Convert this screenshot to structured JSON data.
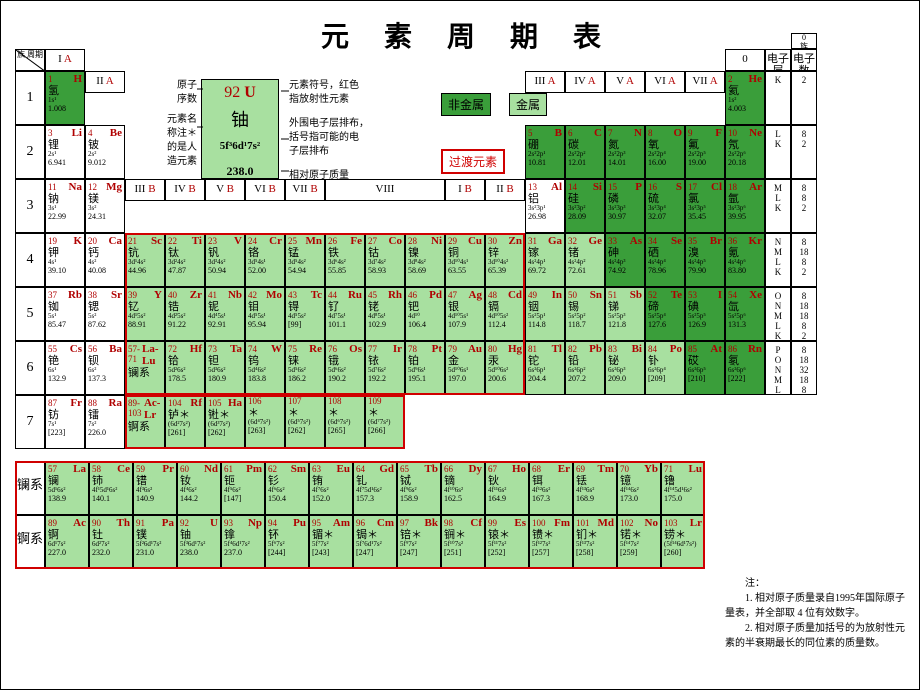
{
  "title": "元 素 周 期 表",
  "legend": {
    "nonmetal": "非金属",
    "metal": "金属",
    "transition": "过渡元素"
  },
  "annotations": {
    "atomic_num": "原子\n序数",
    "symbol_hint": "元素符号，红色\n指放射性元素",
    "name_hint": "元素名\n称注＊\n的是人\n造元素",
    "econf_hint": "外围电子层排布，\n括号指可能的电\n子层排布",
    "mass_hint": "相对原子质量"
  },
  "example": {
    "num": "92",
    "sym": "U",
    "cn": "铀",
    "ec": "5f³6d¹7s²",
    "mass": "238.0"
  },
  "notes_title": "注：",
  "notes": [
    "1. 相对原子质量录自1995年国际原子量表，并全部取 4 位有效数字。",
    "2. 相对原子质量加括号的为放射性元素的半衰期最长的同位素的质量数。"
  ],
  "groups_main": [
    "I A",
    "II A",
    "III A",
    "IV A",
    "V A",
    "VI A",
    "VII A",
    "0"
  ],
  "groups_b": [
    "III B",
    "IV B",
    "V B",
    "VI B",
    "VII B",
    "VIII",
    "I B",
    "II B"
  ],
  "periods": [
    "1",
    "2",
    "3",
    "4",
    "5",
    "6",
    "7"
  ],
  "shell_labels": [
    "电子层",
    "电子数"
  ],
  "shells": [
    [
      "K",
      "2"
    ],
    [
      "L\nK",
      "8\n2"
    ],
    [
      "M\nL\nK",
      "8\n8\n2"
    ],
    [
      "N\nM\nL\nK",
      "8\n18\n8\n2"
    ],
    [
      "O\nN\nM\nL\nK",
      "8\n18\n18\n8\n2"
    ],
    [
      "P\nO\nN\nM\nL\nK",
      "8\n18\n32\n18\n8\n2"
    ]
  ],
  "corner": "族\n周期",
  "series": {
    "lan": "镧系",
    "act": "锕系"
  },
  "colors": {
    "green": "#a8e0a0",
    "dgreen": "#3a9e3a",
    "red": "#b00000",
    "border_red": "#d00000",
    "white": "#ffffff",
    "black": "#000000"
  },
  "elements": [
    {
      "p": 1,
      "g": 1,
      "n": "1",
      "s": "H",
      "cn": "氢",
      "ec": "1s¹",
      "m": "1.008",
      "c": "dgreen"
    },
    {
      "p": 1,
      "g": 18,
      "n": "2",
      "s": "He",
      "cn": "氦",
      "ec": "1s²",
      "m": "4.003",
      "c": "dgreen"
    },
    {
      "p": 2,
      "g": 1,
      "n": "3",
      "s": "Li",
      "cn": "锂",
      "ec": "2s¹",
      "m": "6.941",
      "c": ""
    },
    {
      "p": 2,
      "g": 2,
      "n": "4",
      "s": "Be",
      "cn": "铍",
      "ec": "2s²",
      "m": "9.012",
      "c": ""
    },
    {
      "p": 2,
      "g": 13,
      "n": "5",
      "s": "B",
      "cn": "硼",
      "ec": "2s²2p¹",
      "m": "10.81",
      "c": "dgreen"
    },
    {
      "p": 2,
      "g": 14,
      "n": "6",
      "s": "C",
      "cn": "碳",
      "ec": "2s²2p²",
      "m": "12.01",
      "c": "dgreen"
    },
    {
      "p": 2,
      "g": 15,
      "n": "7",
      "s": "N",
      "cn": "氮",
      "ec": "2s²2p³",
      "m": "14.01",
      "c": "dgreen"
    },
    {
      "p": 2,
      "g": 16,
      "n": "8",
      "s": "O",
      "cn": "氧",
      "ec": "2s²2p⁴",
      "m": "16.00",
      "c": "dgreen"
    },
    {
      "p": 2,
      "g": 17,
      "n": "9",
      "s": "F",
      "cn": "氟",
      "ec": "2s²2p⁵",
      "m": "19.00",
      "c": "dgreen"
    },
    {
      "p": 2,
      "g": 18,
      "n": "10",
      "s": "Ne",
      "cn": "氖",
      "ec": "2s²2p⁶",
      "m": "20.18",
      "c": "dgreen"
    },
    {
      "p": 3,
      "g": 1,
      "n": "11",
      "s": "Na",
      "cn": "钠",
      "ec": "3s¹",
      "m": "22.99",
      "c": ""
    },
    {
      "p": 3,
      "g": 2,
      "n": "12",
      "s": "Mg",
      "cn": "镁",
      "ec": "3s²",
      "m": "24.31",
      "c": ""
    },
    {
      "p": 3,
      "g": 13,
      "n": "13",
      "s": "Al",
      "cn": "铝",
      "ec": "3s²3p¹",
      "m": "26.98",
      "c": ""
    },
    {
      "p": 3,
      "g": 14,
      "n": "14",
      "s": "Si",
      "cn": "硅",
      "ec": "3s²3p²",
      "m": "28.09",
      "c": "dgreen"
    },
    {
      "p": 3,
      "g": 15,
      "n": "15",
      "s": "P",
      "cn": "磷",
      "ec": "3s²3p³",
      "m": "30.97",
      "c": "dgreen"
    },
    {
      "p": 3,
      "g": 16,
      "n": "16",
      "s": "S",
      "cn": "硫",
      "ec": "3s²3p⁴",
      "m": "32.07",
      "c": "dgreen"
    },
    {
      "p": 3,
      "g": 17,
      "n": "17",
      "s": "Cl",
      "cn": "氯",
      "ec": "3s²3p⁵",
      "m": "35.45",
      "c": "dgreen"
    },
    {
      "p": 3,
      "g": 18,
      "n": "18",
      "s": "Ar",
      "cn": "氩",
      "ec": "3s²3p⁶",
      "m": "39.95",
      "c": "dgreen"
    },
    {
      "p": 4,
      "g": 1,
      "n": "19",
      "s": "K",
      "cn": "钾",
      "ec": "4s¹",
      "m": "39.10",
      "c": ""
    },
    {
      "p": 4,
      "g": 2,
      "n": "20",
      "s": "Ca",
      "cn": "钙",
      "ec": "4s²",
      "m": "40.08",
      "c": ""
    },
    {
      "p": 4,
      "g": 3,
      "n": "21",
      "s": "Sc",
      "cn": "钪",
      "ec": "3d¹4s²",
      "m": "44.96",
      "c": "green"
    },
    {
      "p": 4,
      "g": 4,
      "n": "22",
      "s": "Ti",
      "cn": "钛",
      "ec": "3d²4s²",
      "m": "47.87",
      "c": "green"
    },
    {
      "p": 4,
      "g": 5,
      "n": "23",
      "s": "V",
      "cn": "钒",
      "ec": "3d³4s²",
      "m": "50.94",
      "c": "green"
    },
    {
      "p": 4,
      "g": 6,
      "n": "24",
      "s": "Cr",
      "cn": "铬",
      "ec": "3d⁵4s¹",
      "m": "52.00",
      "c": "green"
    },
    {
      "p": 4,
      "g": 7,
      "n": "25",
      "s": "Mn",
      "cn": "锰",
      "ec": "3d⁵4s²",
      "m": "54.94",
      "c": "green"
    },
    {
      "p": 4,
      "g": 8,
      "n": "26",
      "s": "Fe",
      "cn": "铁",
      "ec": "3d⁶4s²",
      "m": "55.85",
      "c": "green"
    },
    {
      "p": 4,
      "g": 9,
      "n": "27",
      "s": "Co",
      "cn": "钴",
      "ec": "3d⁷4s²",
      "m": "58.93",
      "c": "green"
    },
    {
      "p": 4,
      "g": 10,
      "n": "28",
      "s": "Ni",
      "cn": "镍",
      "ec": "3d⁸4s²",
      "m": "58.69",
      "c": "green"
    },
    {
      "p": 4,
      "g": 11,
      "n": "29",
      "s": "Cu",
      "cn": "铜",
      "ec": "3d¹⁰4s¹",
      "m": "63.55",
      "c": "green"
    },
    {
      "p": 4,
      "g": 12,
      "n": "30",
      "s": "Zn",
      "cn": "锌",
      "ec": "3d¹⁰4s²",
      "m": "65.39",
      "c": "green"
    },
    {
      "p": 4,
      "g": 13,
      "n": "31",
      "s": "Ga",
      "cn": "镓",
      "ec": "4s²4p¹",
      "m": "69.72",
      "c": "green"
    },
    {
      "p": 4,
      "g": 14,
      "n": "32",
      "s": "Ge",
      "cn": "锗",
      "ec": "4s²4p²",
      "m": "72.61",
      "c": "green"
    },
    {
      "p": 4,
      "g": 15,
      "n": "33",
      "s": "As",
      "cn": "砷",
      "ec": "4s²4p³",
      "m": "74.92",
      "c": "dgreen"
    },
    {
      "p": 4,
      "g": 16,
      "n": "34",
      "s": "Se",
      "cn": "硒",
      "ec": "4s²4p⁴",
      "m": "78.96",
      "c": "dgreen"
    },
    {
      "p": 4,
      "g": 17,
      "n": "35",
      "s": "Br",
      "cn": "溴",
      "ec": "4s²4p⁵",
      "m": "79.90",
      "c": "dgreen"
    },
    {
      "p": 4,
      "g": 18,
      "n": "36",
      "s": "Kr",
      "cn": "氪",
      "ec": "4s²4p⁶",
      "m": "83.80",
      "c": "dgreen"
    },
    {
      "p": 5,
      "g": 1,
      "n": "37",
      "s": "Rb",
      "cn": "铷",
      "ec": "5s¹",
      "m": "85.47",
      "c": ""
    },
    {
      "p": 5,
      "g": 2,
      "n": "38",
      "s": "Sr",
      "cn": "锶",
      "ec": "5s²",
      "m": "87.62",
      "c": ""
    },
    {
      "p": 5,
      "g": 3,
      "n": "39",
      "s": "Y",
      "cn": "钇",
      "ec": "4d¹5s²",
      "m": "88.91",
      "c": "green"
    },
    {
      "p": 5,
      "g": 4,
      "n": "40",
      "s": "Zr",
      "cn": "锆",
      "ec": "4d²5s²",
      "m": "91.22",
      "c": "green"
    },
    {
      "p": 5,
      "g": 5,
      "n": "41",
      "s": "Nb",
      "cn": "铌",
      "ec": "4d⁴5s¹",
      "m": "92.91",
      "c": "green"
    },
    {
      "p": 5,
      "g": 6,
      "n": "42",
      "s": "Mo",
      "cn": "钼",
      "ec": "4d⁵5s¹",
      "m": "95.94",
      "c": "green"
    },
    {
      "p": 5,
      "g": 7,
      "n": "43",
      "s": "Tc",
      "cn": "锝",
      "ec": "4d⁵5s²",
      "m": "[99]",
      "c": "green"
    },
    {
      "p": 5,
      "g": 8,
      "n": "44",
      "s": "Ru",
      "cn": "钌",
      "ec": "4d⁷5s¹",
      "m": "101.1",
      "c": "green"
    },
    {
      "p": 5,
      "g": 9,
      "n": "45",
      "s": "Rh",
      "cn": "铑",
      "ec": "4d⁸5s¹",
      "m": "102.9",
      "c": "green"
    },
    {
      "p": 5,
      "g": 10,
      "n": "46",
      "s": "Pd",
      "cn": "钯",
      "ec": "4d¹⁰",
      "m": "106.4",
      "c": "green"
    },
    {
      "p": 5,
      "g": 11,
      "n": "47",
      "s": "Ag",
      "cn": "银",
      "ec": "4d¹⁰5s¹",
      "m": "107.9",
      "c": "green"
    },
    {
      "p": 5,
      "g": 12,
      "n": "48",
      "s": "Cd",
      "cn": "镉",
      "ec": "4d¹⁰5s²",
      "m": "112.4",
      "c": "green"
    },
    {
      "p": 5,
      "g": 13,
      "n": "49",
      "s": "In",
      "cn": "铟",
      "ec": "5s²5p¹",
      "m": "114.8",
      "c": "green"
    },
    {
      "p": 5,
      "g": 14,
      "n": "50",
      "s": "Sn",
      "cn": "锡",
      "ec": "5s²5p²",
      "m": "118.7",
      "c": "green"
    },
    {
      "p": 5,
      "g": 15,
      "n": "51",
      "s": "Sb",
      "cn": "锑",
      "ec": "5s²5p³",
      "m": "121.8",
      "c": "green"
    },
    {
      "p": 5,
      "g": 16,
      "n": "52",
      "s": "Te",
      "cn": "碲",
      "ec": "5s²5p⁴",
      "m": "127.6",
      "c": "dgreen"
    },
    {
      "p": 5,
      "g": 17,
      "n": "53",
      "s": "I",
      "cn": "碘",
      "ec": "5s²5p⁵",
      "m": "126.9",
      "c": "dgreen"
    },
    {
      "p": 5,
      "g": 18,
      "n": "54",
      "s": "Xe",
      "cn": "氙",
      "ec": "5s²5p⁶",
      "m": "131.3",
      "c": "dgreen"
    },
    {
      "p": 6,
      "g": 1,
      "n": "55",
      "s": "Cs",
      "cn": "铯",
      "ec": "6s¹",
      "m": "132.9",
      "c": ""
    },
    {
      "p": 6,
      "g": 2,
      "n": "56",
      "s": "Ba",
      "cn": "钡",
      "ec": "6s²",
      "m": "137.3",
      "c": ""
    },
    {
      "p": 6,
      "g": 3,
      "n": "57-71",
      "s": "La-Lu",
      "cn": "镧系",
      "ec": "",
      "m": "",
      "c": "green"
    },
    {
      "p": 6,
      "g": 4,
      "n": "72",
      "s": "Hf",
      "cn": "铪",
      "ec": "5d²6s²",
      "m": "178.5",
      "c": "green"
    },
    {
      "p": 6,
      "g": 5,
      "n": "73",
      "s": "Ta",
      "cn": "钽",
      "ec": "5d³6s²",
      "m": "180.9",
      "c": "green"
    },
    {
      "p": 6,
      "g": 6,
      "n": "74",
      "s": "W",
      "cn": "钨",
      "ec": "5d⁴6s²",
      "m": "183.8",
      "c": "green"
    },
    {
      "p": 6,
      "g": 7,
      "n": "75",
      "s": "Re",
      "cn": "铼",
      "ec": "5d⁵6s²",
      "m": "186.2",
      "c": "green"
    },
    {
      "p": 6,
      "g": 8,
      "n": "76",
      "s": "Os",
      "cn": "锇",
      "ec": "5d⁶6s²",
      "m": "190.2",
      "c": "green"
    },
    {
      "p": 6,
      "g": 9,
      "n": "77",
      "s": "Ir",
      "cn": "铱",
      "ec": "5d⁷6s²",
      "m": "192.2",
      "c": "green"
    },
    {
      "p": 6,
      "g": 10,
      "n": "78",
      "s": "Pt",
      "cn": "铂",
      "ec": "5d⁹6s¹",
      "m": "195.1",
      "c": "green"
    },
    {
      "p": 6,
      "g": 11,
      "n": "79",
      "s": "Au",
      "cn": "金",
      "ec": "5d¹⁰6s¹",
      "m": "197.0",
      "c": "green"
    },
    {
      "p": 6,
      "g": 12,
      "n": "80",
      "s": "Hg",
      "cn": "汞",
      "ec": "5d¹⁰6s²",
      "m": "200.6",
      "c": "green"
    },
    {
      "p": 6,
      "g": 13,
      "n": "81",
      "s": "Tl",
      "cn": "铊",
      "ec": "6s²6p¹",
      "m": "204.4",
      "c": "green"
    },
    {
      "p": 6,
      "g": 14,
      "n": "82",
      "s": "Pb",
      "cn": "铅",
      "ec": "6s²6p²",
      "m": "207.2",
      "c": "green"
    },
    {
      "p": 6,
      "g": 15,
      "n": "83",
      "s": "Bi",
      "cn": "铋",
      "ec": "6s²6p³",
      "m": "209.0",
      "c": "green"
    },
    {
      "p": 6,
      "g": 16,
      "n": "84",
      "s": "Po",
      "cn": "钋",
      "ec": "6s²6p⁴",
      "m": "[209]",
      "c": "green"
    },
    {
      "p": 6,
      "g": 17,
      "n": "85",
      "s": "At",
      "cn": "砹",
      "ec": "6s²6p⁵",
      "m": "[210]",
      "c": "dgreen"
    },
    {
      "p": 6,
      "g": 18,
      "n": "86",
      "s": "Rn",
      "cn": "氡",
      "ec": "6s²6p⁶",
      "m": "[222]",
      "c": "dgreen"
    },
    {
      "p": 7,
      "g": 1,
      "n": "87",
      "s": "Fr",
      "cn": "钫",
      "ec": "7s¹",
      "m": "[223]",
      "c": ""
    },
    {
      "p": 7,
      "g": 2,
      "n": "88",
      "s": "Ra",
      "cn": "镭",
      "ec": "7s²",
      "m": "226.0",
      "c": ""
    },
    {
      "p": 7,
      "g": 3,
      "n": "89-103",
      "s": "Ac-Lr",
      "cn": "锕系",
      "ec": "",
      "m": "",
      "c": "green"
    },
    {
      "p": 7,
      "g": 4,
      "n": "104",
      "s": "Rf",
      "cn": "𬬻＊",
      "ec": "(6d²7s²)",
      "m": "[261]",
      "c": "green"
    },
    {
      "p": 7,
      "g": 5,
      "n": "105",
      "s": "Ha",
      "cn": "𬭊＊",
      "ec": "(6d³7s²)",
      "m": "[262]",
      "c": "green"
    },
    {
      "p": 7,
      "g": 6,
      "n": "106",
      "s": "",
      "cn": "＊",
      "ec": "(6d⁴7s²)",
      "m": "[263]",
      "c": "green"
    },
    {
      "p": 7,
      "g": 7,
      "n": "107",
      "s": "",
      "cn": "＊",
      "ec": "(6d⁵7s²)",
      "m": "[262]",
      "c": "green"
    },
    {
      "p": 7,
      "g": 8,
      "n": "108",
      "s": "",
      "cn": "＊",
      "ec": "(6d⁶7s²)",
      "m": "[265]",
      "c": "green"
    },
    {
      "p": 7,
      "g": 9,
      "n": "109",
      "s": "",
      "cn": "＊",
      "ec": "(6d⁷7s²)",
      "m": "[266]",
      "c": "green"
    }
  ],
  "lanthanides": [
    {
      "n": "57",
      "s": "La",
      "cn": "镧",
      "ec": "5d¹6s²",
      "m": "138.9"
    },
    {
      "n": "58",
      "s": "Ce",
      "cn": "铈",
      "ec": "4f¹5d¹6s²",
      "m": "140.1"
    },
    {
      "n": "59",
      "s": "Pr",
      "cn": "镨",
      "ec": "4f³6s²",
      "m": "140.9"
    },
    {
      "n": "60",
      "s": "Nd",
      "cn": "钕",
      "ec": "4f⁴6s²",
      "m": "144.2"
    },
    {
      "n": "61",
      "s": "Pm",
      "cn": "钷",
      "ec": "4f⁵6s²",
      "m": "[147]"
    },
    {
      "n": "62",
      "s": "Sm",
      "cn": "钐",
      "ec": "4f⁶6s²",
      "m": "150.4"
    },
    {
      "n": "63",
      "s": "Eu",
      "cn": "铕",
      "ec": "4f⁷6s²",
      "m": "152.0"
    },
    {
      "n": "64",
      "s": "Gd",
      "cn": "钆",
      "ec": "4f⁷5d¹6s²",
      "m": "157.3"
    },
    {
      "n": "65",
      "s": "Tb",
      "cn": "铽",
      "ec": "4f⁹6s²",
      "m": "158.9"
    },
    {
      "n": "66",
      "s": "Dy",
      "cn": "镝",
      "ec": "4f¹⁰6s²",
      "m": "162.5"
    },
    {
      "n": "67",
      "s": "Ho",
      "cn": "钬",
      "ec": "4f¹¹6s²",
      "m": "164.9"
    },
    {
      "n": "68",
      "s": "Er",
      "cn": "铒",
      "ec": "4f¹²6s²",
      "m": "167.3"
    },
    {
      "n": "69",
      "s": "Tm",
      "cn": "铥",
      "ec": "4f¹³6s²",
      "m": "168.9"
    },
    {
      "n": "70",
      "s": "Yb",
      "cn": "镱",
      "ec": "4f¹⁴6s²",
      "m": "173.0"
    },
    {
      "n": "71",
      "s": "Lu",
      "cn": "镥",
      "ec": "4f¹⁴5d¹6s²",
      "m": "175.0"
    }
  ],
  "actinides": [
    {
      "n": "89",
      "s": "Ac",
      "cn": "锕",
      "ec": "6d¹7s²",
      "m": "227.0"
    },
    {
      "n": "90",
      "s": "Th",
      "cn": "钍",
      "ec": "6d²7s²",
      "m": "232.0"
    },
    {
      "n": "91",
      "s": "Pa",
      "cn": "镤",
      "ec": "5f²6d¹7s²",
      "m": "231.0"
    },
    {
      "n": "92",
      "s": "U",
      "cn": "铀",
      "ec": "5f³6d¹7s²",
      "m": "238.0"
    },
    {
      "n": "93",
      "s": "Np",
      "cn": "镎",
      "ec": "5f⁴6d¹7s²",
      "m": "237.0"
    },
    {
      "n": "94",
      "s": "Pu",
      "cn": "钚",
      "ec": "5f⁶7s²",
      "m": "[244]"
    },
    {
      "n": "95",
      "s": "Am",
      "cn": "镅＊",
      "ec": "5f⁷7s²",
      "m": "[243]"
    },
    {
      "n": "96",
      "s": "Cm",
      "cn": "锔＊",
      "ec": "5f⁷6d¹7s²",
      "m": "[247]"
    },
    {
      "n": "97",
      "s": "Bk",
      "cn": "锫＊",
      "ec": "5f⁹7s²",
      "m": "[247]"
    },
    {
      "n": "98",
      "s": "Cf",
      "cn": "锎＊",
      "ec": "5f¹⁰7s²",
      "m": "[251]"
    },
    {
      "n": "99",
      "s": "Es",
      "cn": "锿＊",
      "ec": "5f¹¹7s²",
      "m": "[252]"
    },
    {
      "n": "100",
      "s": "Fm",
      "cn": "镄＊",
      "ec": "5f¹²7s²",
      "m": "[257]"
    },
    {
      "n": "101",
      "s": "Md",
      "cn": "钔＊",
      "ec": "5f¹³7s²",
      "m": "[258]"
    },
    {
      "n": "102",
      "s": "No",
      "cn": "锘＊",
      "ec": "5f¹⁴7s²",
      "m": "[259]"
    },
    {
      "n": "103",
      "s": "Lr",
      "cn": "铹＊",
      "ec": "(5f¹⁴6d¹7s²)",
      "m": "[260]"
    }
  ]
}
